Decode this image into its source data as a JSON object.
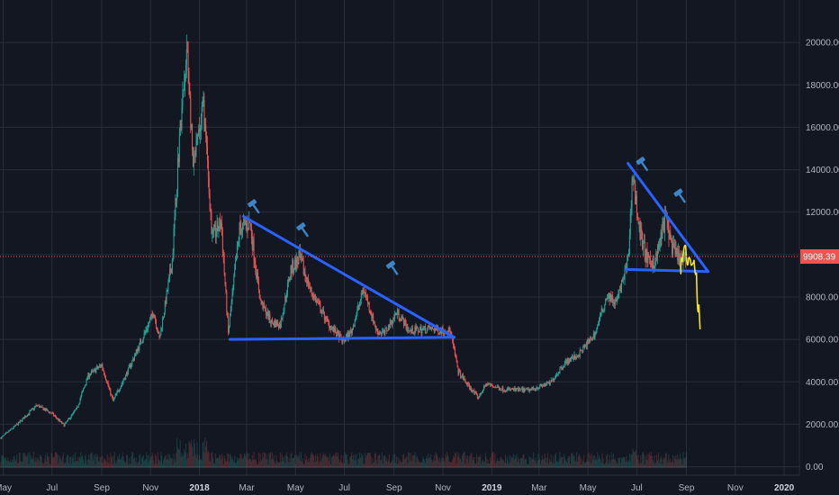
{
  "chart_data": {
    "type": "candlestick",
    "title": "",
    "xlabel": "",
    "ylabel": "",
    "ylim": [
      -400,
      22000
    ],
    "y_ticks": [
      "0.00",
      "2000.00",
      "4000.00",
      "6000.00",
      "8000.00",
      "10000.00",
      "12000.00",
      "14000.00",
      "16000.00",
      "18000.00",
      "20000.00"
    ],
    "x_ticks": [
      "May",
      "Jul",
      "Sep",
      "Nov",
      "2018",
      "Mar",
      "May",
      "Jul",
      "Sep",
      "Nov",
      "2019",
      "Mar",
      "May",
      "Jul",
      "Sep",
      "Nov",
      "2020"
    ],
    "x_tick_dates": [
      "2017-05-01",
      "2017-07-01",
      "2017-09-01",
      "2017-11-01",
      "2018-01-01",
      "2018-03-01",
      "2018-05-01",
      "2018-07-01",
      "2018-09-01",
      "2018-11-01",
      "2019-01-01",
      "2019-03-01",
      "2019-05-01",
      "2019-07-01",
      "2019-09-01",
      "2019-11-01",
      "2020-01-01"
    ],
    "xlim": [
      "2017-04-27",
      "2020-01-20"
    ],
    "grid": true,
    "last_price": 9908.39,
    "last_price_label": "9908.39",
    "price_path": [
      [
        "2017-04-28",
        1350
      ],
      [
        "2017-05-20",
        2050
      ],
      [
        "2017-06-12",
        2900
      ],
      [
        "2017-07-01",
        2500
      ],
      [
        "2017-07-16",
        1950
      ],
      [
        "2017-08-01",
        2750
      ],
      [
        "2017-08-15",
        4300
      ],
      [
        "2017-09-01",
        4800
      ],
      [
        "2017-09-15",
        3100
      ],
      [
        "2017-10-01",
        4300
      ],
      [
        "2017-10-20",
        5900
      ],
      [
        "2017-11-05",
        7300
      ],
      [
        "2017-11-12",
        6000
      ],
      [
        "2017-11-28",
        9700
      ],
      [
        "2017-12-07",
        15500
      ],
      [
        "2017-12-17",
        19600
      ],
      [
        "2017-12-24",
        14000
      ],
      [
        "2018-01-06",
        17000
      ],
      [
        "2018-01-17",
        10800
      ],
      [
        "2018-01-28",
        11500
      ],
      [
        "2018-02-06",
        6300
      ],
      [
        "2018-02-20",
        11200
      ],
      [
        "2018-03-05",
        11500
      ],
      [
        "2018-03-18",
        7800
      ],
      [
        "2018-04-01",
        6800
      ],
      [
        "2018-04-12",
        6700
      ],
      [
        "2018-04-25",
        9300
      ],
      [
        "2018-05-06",
        9800
      ],
      [
        "2018-05-20",
        8300
      ],
      [
        "2018-06-10",
        6800
      ],
      [
        "2018-06-29",
        5900
      ],
      [
        "2018-07-10",
        6400
      ],
      [
        "2018-07-25",
        8400
      ],
      [
        "2018-08-10",
        6400
      ],
      [
        "2018-08-20",
        6300
      ],
      [
        "2018-09-05",
        7300
      ],
      [
        "2018-09-20",
        6400
      ],
      [
        "2018-10-15",
        6500
      ],
      [
        "2018-11-10",
        6400
      ],
      [
        "2018-11-20",
        4500
      ],
      [
        "2018-12-01",
        3900
      ],
      [
        "2018-12-15",
        3250
      ],
      [
        "2018-12-25",
        3900
      ],
      [
        "2019-01-15",
        3650
      ],
      [
        "2019-02-15",
        3600
      ],
      [
        "2019-03-15",
        3950
      ],
      [
        "2019-04-02",
        4900
      ],
      [
        "2019-04-20",
        5300
      ],
      [
        "2019-05-10",
        6300
      ],
      [
        "2019-05-25",
        8100
      ],
      [
        "2019-06-05",
        7700
      ],
      [
        "2019-06-20",
        9600
      ],
      [
        "2019-06-26",
        13800
      ],
      [
        "2019-07-05",
        11000
      ],
      [
        "2019-07-16",
        9500
      ],
      [
        "2019-07-25",
        9800
      ],
      [
        "2019-08-06",
        11800
      ],
      [
        "2019-08-15",
        10200
      ],
      [
        "2019-08-28",
        9600
      ],
      [
        "2019-09-01",
        9908
      ]
    ],
    "annotations": {
      "triangle_2018": {
        "top": [
          [
            "2018-02-25",
            11800
          ],
          [
            "2018-11-15",
            6100
          ]
        ],
        "base": [
          [
            "2018-02-08",
            6000
          ],
          [
            "2018-11-15",
            6100
          ]
        ],
        "color": "#2962ff"
      },
      "triangle_2019": {
        "top": [
          [
            "2019-06-20",
            14300
          ],
          [
            "2019-09-28",
            9200
          ]
        ],
        "base": [
          [
            "2019-06-18",
            9300
          ],
          [
            "2019-09-28",
            9200
          ]
        ],
        "color": "#2962ff"
      },
      "projection_path": [
        [
          "2019-08-25",
          9100
        ],
        [
          "2019-08-29",
          10200
        ],
        [
          "2019-09-02",
          10600
        ],
        [
          "2019-09-05",
          9000
        ],
        [
          "2019-09-09",
          10000
        ],
        [
          "2019-09-12",
          9500
        ],
        [
          "2019-09-15",
          8800
        ],
        [
          "2019-09-18",
          6500
        ]
      ],
      "projection_color": "#f5e228",
      "hammer_markers": [
        [
          "2018-03-10",
          12300
        ],
        [
          "2018-05-10",
          11200
        ],
        [
          "2018-08-30",
          9400
        ],
        [
          "2019-07-08",
          14300
        ],
        [
          "2019-08-24",
          12800
        ]
      ],
      "hammer_color": "#3d85c6"
    },
    "colors": {
      "up": "#26a69a",
      "down": "#ef5350",
      "background": "#131722",
      "grid": "#2a2e39",
      "price_line": "#ef5350"
    }
  }
}
